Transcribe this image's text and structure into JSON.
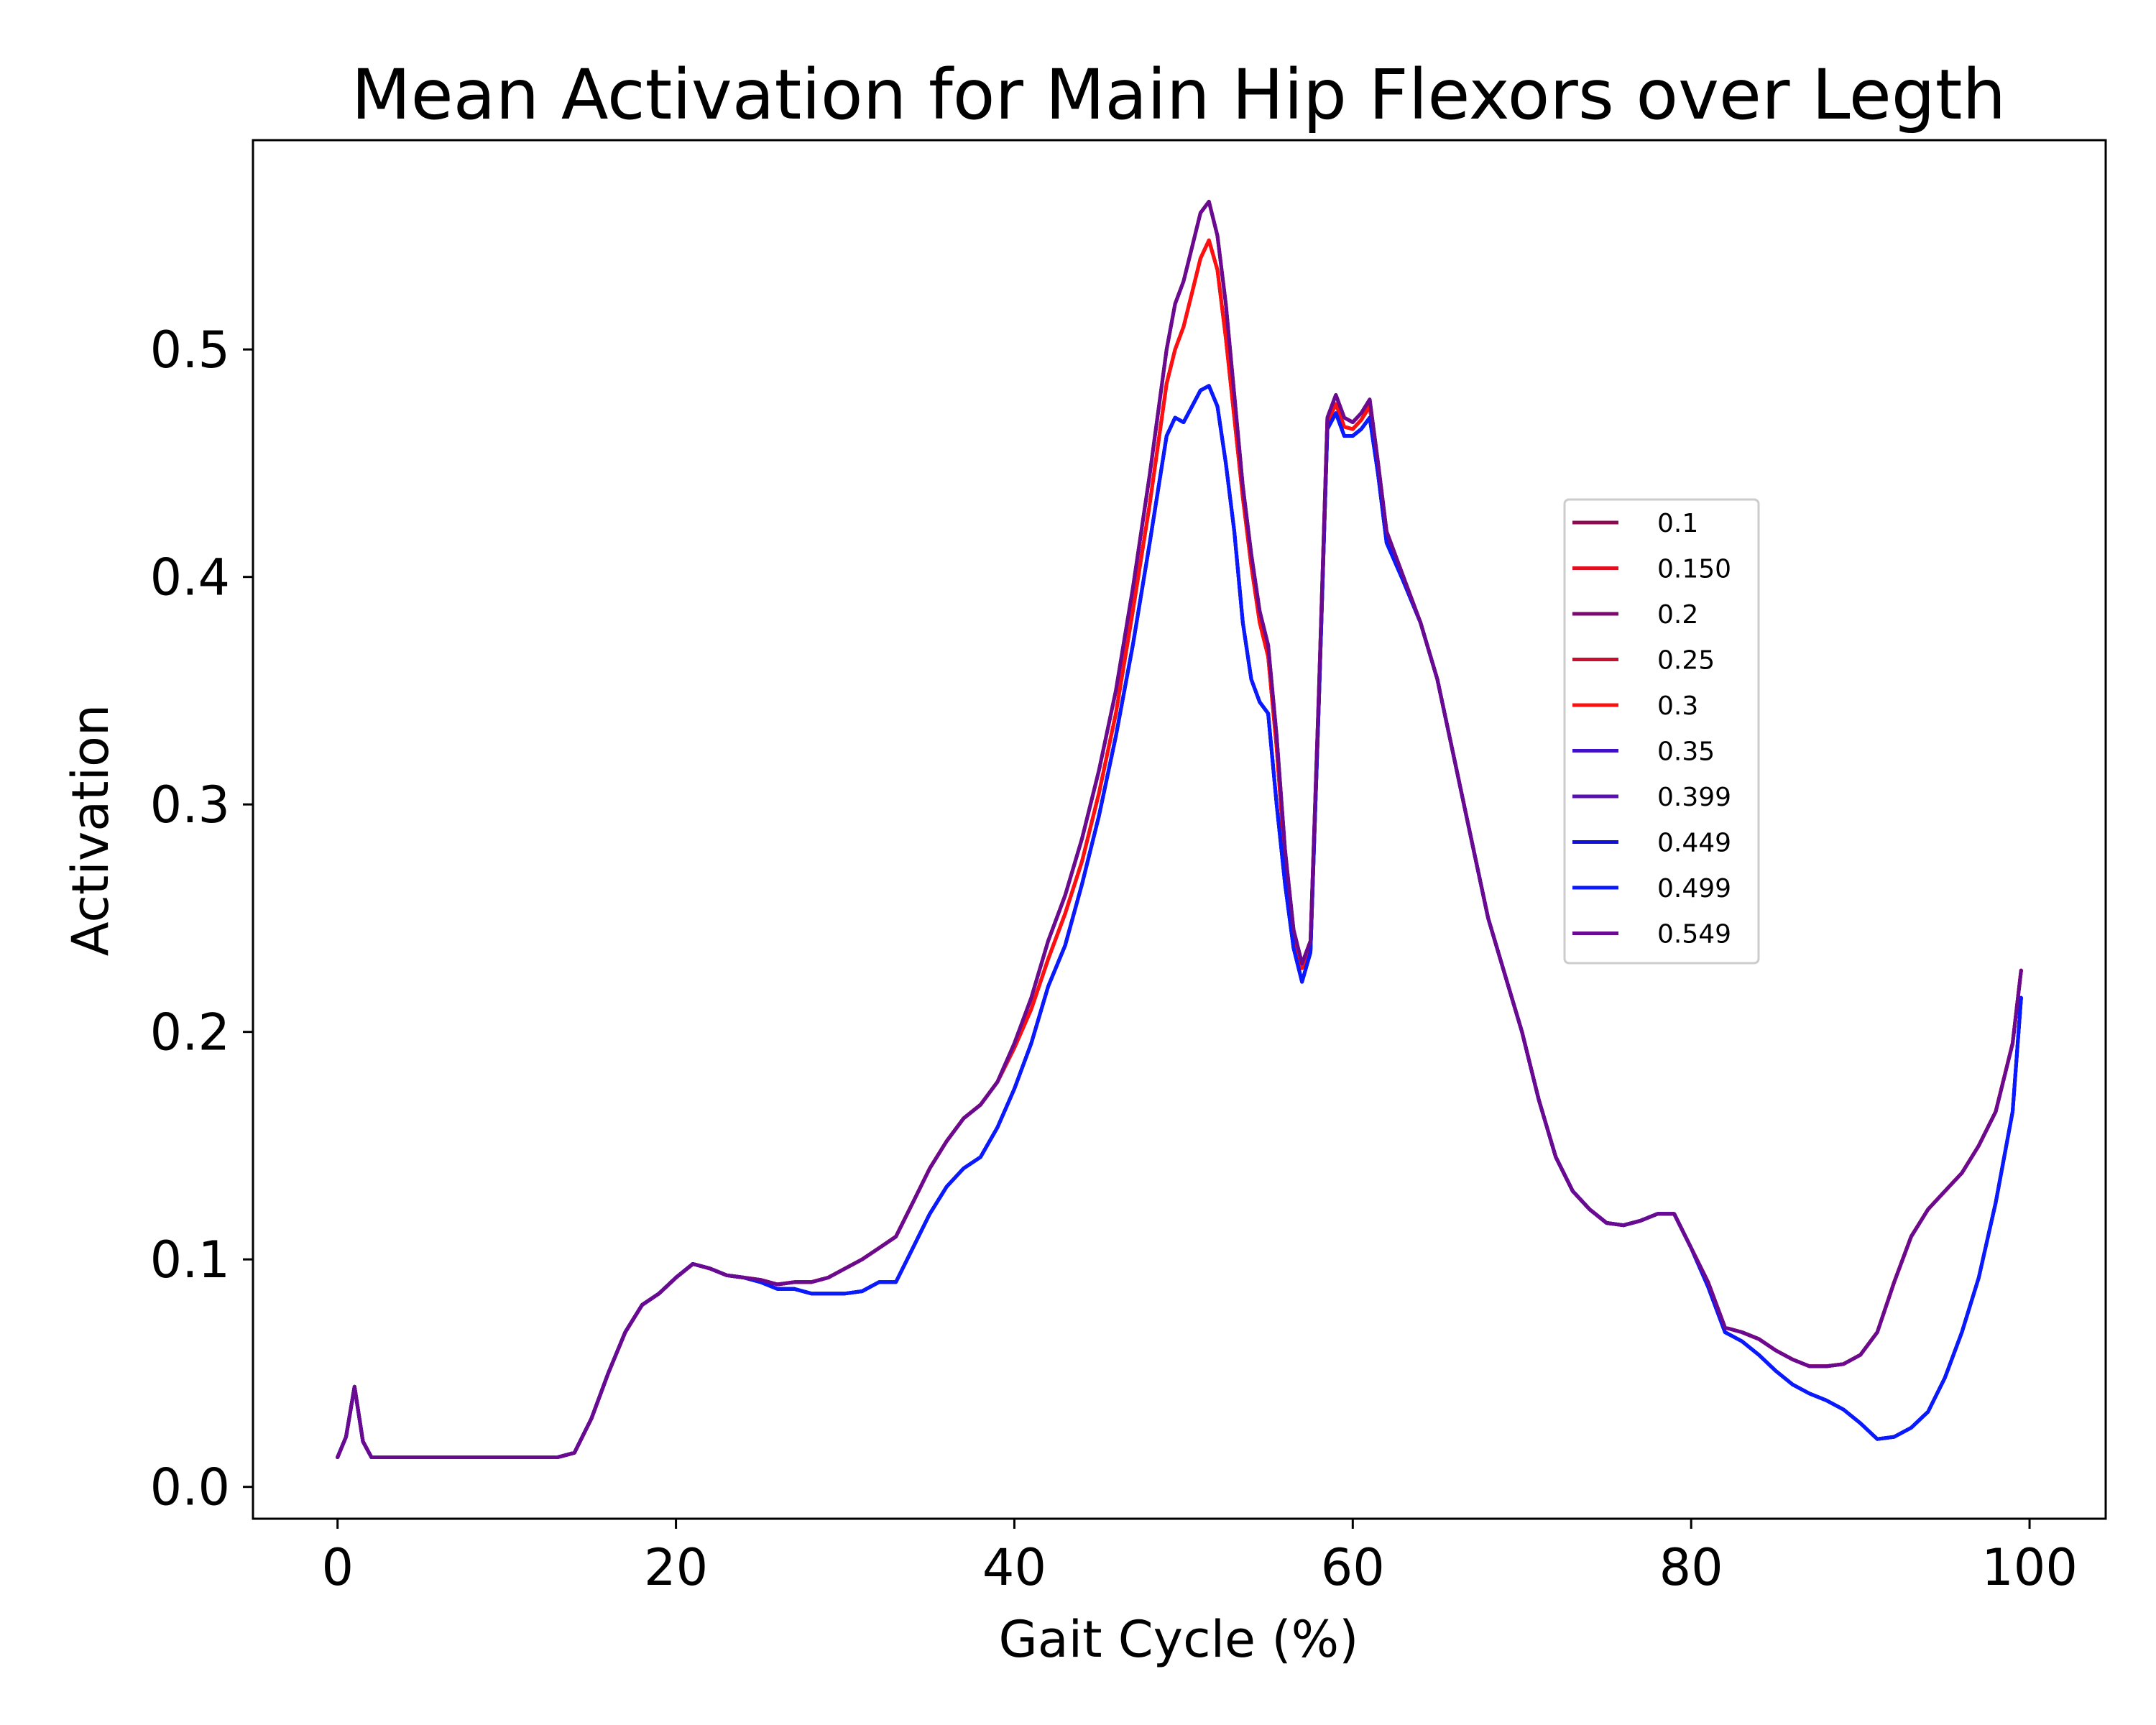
{
  "chart_data": {
    "type": "line",
    "title": "Mean Activation for Main Hip Flexors over Legth",
    "xlabel": "Gait Cycle (%)",
    "ylabel": "Activation",
    "xlim": [
      -5,
      104.5
    ],
    "ylim": [
      -0.014,
      0.592
    ],
    "xticks": [
      0,
      20,
      40,
      60,
      80,
      100
    ],
    "yticks": [
      0.0,
      0.1,
      0.2,
      0.3,
      0.4,
      0.5
    ],
    "xtick_labels": [
      "0",
      "20",
      "40",
      "60",
      "80",
      "100"
    ],
    "ytick_labels": [
      "0.0",
      "0.1",
      "0.2",
      "0.3",
      "0.4",
      "0.5"
    ],
    "grid": false,
    "legend_position": "right",
    "series": [
      {
        "name": "0.1",
        "color": "#8b0a50",
        "profile": "high"
      },
      {
        "name": "0.150",
        "color": "#e01020",
        "profile": "mid"
      },
      {
        "name": "0.2",
        "color": "#7a0a6e",
        "profile": "high"
      },
      {
        "name": "0.25",
        "color": "#c8102e",
        "profile": "mid"
      },
      {
        "name": "0.3",
        "color": "#ff1010",
        "profile": "mid"
      },
      {
        "name": "0.35",
        "color": "#4010c8",
        "profile": "low"
      },
      {
        "name": "0.399",
        "color": "#5a10b0",
        "profile": "low"
      },
      {
        "name": "0.449",
        "color": "#1010d8",
        "profile": "low"
      },
      {
        "name": "0.499",
        "color": "#0a1aff",
        "profile": "low"
      },
      {
        "name": "0.549",
        "color": "#6a0a90",
        "profile": "high"
      }
    ],
    "profiles": {
      "high": {
        "x": [
          0,
          0.5,
          1,
          1.5,
          2,
          3,
          5,
          8,
          10,
          12,
          13,
          13.5,
          14,
          15,
          16,
          17,
          18,
          19,
          20,
          21,
          22,
          23,
          24,
          25,
          26,
          27,
          28,
          29,
          30,
          31,
          32,
          33,
          34,
          35,
          36,
          37,
          38,
          39,
          40,
          41,
          42,
          43,
          44,
          45,
          46,
          47,
          48,
          49,
          49.5,
          50,
          50.5,
          51,
          51.5,
          52,
          52.5,
          53,
          53.5,
          54,
          54.5,
          55,
          55.5,
          56,
          56.5,
          57,
          57.5,
          58,
          58.5,
          59,
          59.5,
          60,
          60.5,
          61,
          61.5,
          62,
          63,
          64,
          65,
          66,
          67,
          68,
          69,
          70,
          71,
          72,
          73,
          74,
          75,
          76,
          77,
          78,
          79,
          80,
          81,
          82,
          83,
          84,
          85,
          86,
          87,
          88,
          89,
          90,
          91,
          92,
          93,
          94,
          95,
          96,
          97,
          98,
          99,
          99.5
        ],
        "y": [
          0.013,
          0.022,
          0.044,
          0.02,
          0.013,
          0.013,
          0.013,
          0.013,
          0.013,
          0.013,
          0.013,
          0.014,
          0.015,
          0.03,
          0.05,
          0.068,
          0.08,
          0.085,
          0.092,
          0.098,
          0.096,
          0.093,
          0.092,
          0.091,
          0.089,
          0.09,
          0.09,
          0.092,
          0.096,
          0.1,
          0.105,
          0.11,
          0.125,
          0.14,
          0.152,
          0.162,
          0.168,
          0.178,
          0.195,
          0.215,
          0.24,
          0.26,
          0.285,
          0.315,
          0.35,
          0.395,
          0.445,
          0.5,
          0.52,
          0.53,
          0.545,
          0.56,
          0.565,
          0.55,
          0.52,
          0.48,
          0.44,
          0.41,
          0.385,
          0.37,
          0.33,
          0.28,
          0.245,
          0.23,
          0.24,
          0.35,
          0.47,
          0.48,
          0.47,
          0.468,
          0.472,
          0.478,
          0.45,
          0.42,
          0.4,
          0.38,
          0.355,
          0.32,
          0.285,
          0.25,
          0.225,
          0.2,
          0.17,
          0.145,
          0.13,
          0.122,
          0.116,
          0.115,
          0.117,
          0.12,
          0.12,
          0.105,
          0.09,
          0.07,
          0.068,
          0.065,
          0.06,
          0.056,
          0.053,
          0.053,
          0.054,
          0.058,
          0.068,
          0.09,
          0.11,
          0.122,
          0.13,
          0.138,
          0.15,
          0.165,
          0.195,
          0.227
        ]
      },
      "mid": {
        "x": [
          0,
          0.5,
          1,
          1.5,
          2,
          3,
          5,
          8,
          10,
          12,
          13,
          13.5,
          14,
          15,
          16,
          17,
          18,
          19,
          20,
          21,
          22,
          23,
          24,
          25,
          26,
          27,
          28,
          29,
          30,
          31,
          32,
          33,
          34,
          35,
          36,
          37,
          38,
          39,
          40,
          41,
          42,
          43,
          44,
          45,
          46,
          47,
          48,
          49,
          49.5,
          50,
          50.5,
          51,
          51.5,
          52,
          52.5,
          53,
          53.5,
          54,
          54.5,
          55,
          55.5,
          56,
          56.5,
          57,
          57.5,
          58,
          58.5,
          59,
          59.5,
          60,
          60.5,
          61,
          61.5,
          62,
          63,
          64,
          65,
          66,
          67,
          68,
          69,
          70,
          71,
          72,
          73,
          74,
          75,
          76,
          77,
          78,
          79,
          80,
          81,
          82,
          83,
          84,
          85,
          86,
          87,
          88,
          89,
          90,
          91,
          92,
          93,
          94,
          95,
          96,
          97,
          98,
          99,
          99.5
        ],
        "y": [
          0.013,
          0.022,
          0.044,
          0.02,
          0.013,
          0.013,
          0.013,
          0.013,
          0.013,
          0.013,
          0.013,
          0.014,
          0.015,
          0.03,
          0.05,
          0.068,
          0.08,
          0.085,
          0.092,
          0.098,
          0.096,
          0.093,
          0.092,
          0.091,
          0.089,
          0.09,
          0.09,
          0.092,
          0.096,
          0.1,
          0.105,
          0.11,
          0.125,
          0.14,
          0.152,
          0.162,
          0.168,
          0.178,
          0.193,
          0.21,
          0.232,
          0.252,
          0.275,
          0.305,
          0.34,
          0.385,
          0.432,
          0.485,
          0.5,
          0.51,
          0.525,
          0.54,
          0.548,
          0.535,
          0.505,
          0.47,
          0.435,
          0.405,
          0.38,
          0.365,
          0.325,
          0.275,
          0.243,
          0.228,
          0.238,
          0.348,
          0.468,
          0.476,
          0.466,
          0.465,
          0.469,
          0.475,
          0.448,
          0.418,
          0.398,
          0.38,
          0.355,
          0.32,
          0.285,
          0.25,
          0.225,
          0.2,
          0.17,
          0.145,
          0.13,
          0.122,
          0.116,
          0.115,
          0.117,
          0.12,
          0.12,
          0.105,
          0.09,
          0.07,
          0.068,
          0.065,
          0.06,
          0.056,
          0.053,
          0.053,
          0.054,
          0.058,
          0.068,
          0.09,
          0.11,
          0.122,
          0.13,
          0.138,
          0.15,
          0.165,
          0.195,
          0.227
        ]
      },
      "low": {
        "x": [
          0,
          0.5,
          1,
          1.5,
          2,
          3,
          5,
          8,
          10,
          12,
          13,
          13.5,
          14,
          15,
          16,
          17,
          18,
          19,
          20,
          21,
          22,
          23,
          24,
          25,
          26,
          27,
          28,
          29,
          30,
          31,
          32,
          33,
          34,
          35,
          36,
          37,
          38,
          39,
          40,
          41,
          42,
          43,
          44,
          45,
          46,
          47,
          48,
          49,
          49.5,
          50,
          50.5,
          51,
          51.5,
          52,
          52.5,
          53,
          53.5,
          54,
          54.5,
          55,
          55.5,
          56,
          56.5,
          57,
          57.5,
          58,
          58.5,
          59,
          59.5,
          60,
          60.5,
          61,
          61.5,
          62,
          63,
          64,
          65,
          66,
          67,
          68,
          69,
          70,
          71,
          72,
          73,
          74,
          75,
          76,
          77,
          78,
          79,
          80,
          81,
          82,
          83,
          84,
          85,
          86,
          87,
          88,
          89,
          90,
          91,
          92,
          93,
          94,
          95,
          96,
          97,
          98,
          99,
          99.5
        ],
        "y": [
          0.013,
          0.022,
          0.044,
          0.02,
          0.013,
          0.013,
          0.013,
          0.013,
          0.013,
          0.013,
          0.013,
          0.014,
          0.015,
          0.03,
          0.05,
          0.068,
          0.08,
          0.085,
          0.092,
          0.098,
          0.096,
          0.093,
          0.092,
          0.09,
          0.087,
          0.087,
          0.085,
          0.085,
          0.085,
          0.086,
          0.09,
          0.09,
          0.105,
          0.12,
          0.132,
          0.14,
          0.145,
          0.158,
          0.175,
          0.195,
          0.22,
          0.238,
          0.265,
          0.295,
          0.33,
          0.37,
          0.415,
          0.462,
          0.47,
          0.468,
          0.475,
          0.482,
          0.484,
          0.475,
          0.45,
          0.42,
          0.38,
          0.355,
          0.345,
          0.34,
          0.3,
          0.265,
          0.237,
          0.222,
          0.235,
          0.345,
          0.465,
          0.472,
          0.462,
          0.462,
          0.465,
          0.47,
          0.445,
          0.415,
          0.398,
          0.38,
          0.355,
          0.32,
          0.285,
          0.25,
          0.225,
          0.2,
          0.17,
          0.145,
          0.13,
          0.122,
          0.116,
          0.115,
          0.117,
          0.12,
          0.12,
          0.105,
          0.088,
          0.068,
          0.064,
          0.058,
          0.051,
          0.045,
          0.041,
          0.038,
          0.034,
          0.028,
          0.021,
          0.022,
          0.026,
          0.033,
          0.048,
          0.068,
          0.092,
          0.125,
          0.165,
          0.215
        ]
      }
    }
  }
}
